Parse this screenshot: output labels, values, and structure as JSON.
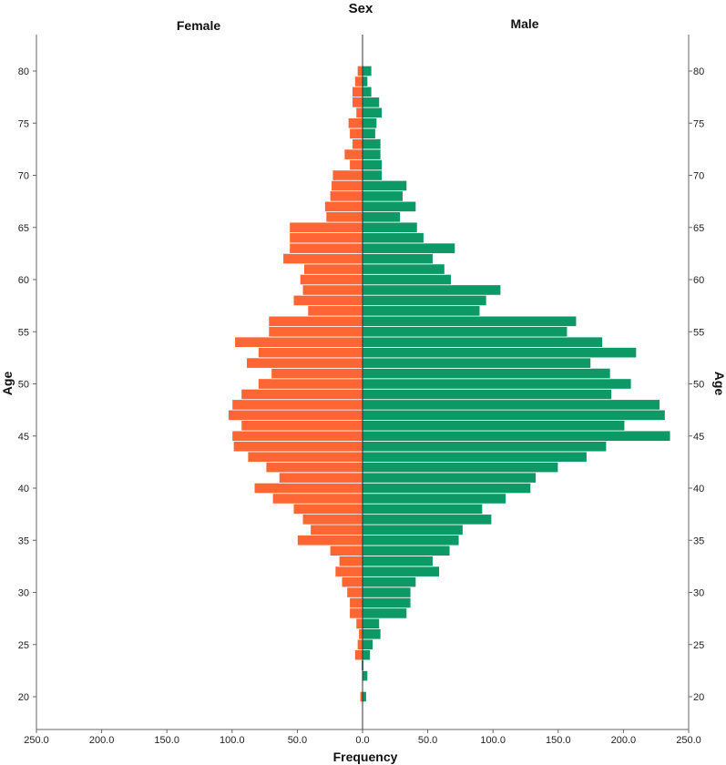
{
  "chart_data": {
    "type": "bar",
    "orientation": "horizontal",
    "title": "Sex",
    "xlabel": "Frequency",
    "ylabel": "Age",
    "xlim": [
      -250,
      250
    ],
    "ylim": [
      17,
      83
    ],
    "x_ticks": [
      "250.0",
      "200.0",
      "150.0",
      "100.0",
      "50.0",
      "0.0",
      "50.0",
      "100.0",
      "150.0",
      "200.0",
      "250.0"
    ],
    "y_ticks": [
      "20",
      "25",
      "30",
      "35",
      "40",
      "45",
      "50",
      "55",
      "60",
      "65",
      "70",
      "75",
      "80"
    ],
    "grid": false,
    "categories": [
      20,
      21,
      22,
      23,
      24,
      25,
      26,
      27,
      28,
      29,
      30,
      31,
      32,
      33,
      34,
      35,
      36,
      37,
      38,
      39,
      40,
      41,
      42,
      43,
      44,
      45,
      46,
      47,
      48,
      49,
      50,
      51,
      52,
      53,
      54,
      55,
      56,
      57,
      58,
      59,
      60,
      61,
      62,
      63,
      64,
      65,
      66,
      67,
      68,
      69,
      70,
      71,
      72,
      73,
      74,
      75,
      76,
      77,
      78,
      79,
      80
    ],
    "series": [
      {
        "name": "Female",
        "color": "#ff6633",
        "values": [
          2,
          0,
          0,
          1,
          6,
          4,
          3,
          5,
          10,
          10,
          12,
          16,
          21,
          18,
          25,
          50,
          40,
          46,
          53,
          69,
          83,
          64,
          74,
          88,
          99,
          100,
          93,
          103,
          100,
          93,
          80,
          70,
          89,
          80,
          98,
          72,
          72,
          42,
          53,
          46,
          48,
          45,
          61,
          56,
          56,
          56,
          28,
          29,
          25,
          24,
          23,
          10,
          14,
          8,
          10,
          11,
          5,
          8,
          8,
          6,
          4
        ]
      },
      {
        "name": "Male",
        "color": "#0c9966",
        "values": [
          3,
          0,
          4,
          1,
          6,
          8,
          14,
          13,
          34,
          37,
          37,
          41,
          59,
          54,
          67,
          74,
          77,
          99,
          92,
          110,
          129,
          133,
          150,
          172,
          187,
          236,
          201,
          232,
          228,
          191,
          206,
          190,
          175,
          210,
          184,
          157,
          164,
          90,
          95,
          106,
          68,
          63,
          54,
          71,
          47,
          42,
          29,
          41,
          31,
          34,
          15,
          15,
          14,
          14,
          10,
          11,
          15,
          13,
          7,
          4,
          7
        ]
      }
    ]
  }
}
